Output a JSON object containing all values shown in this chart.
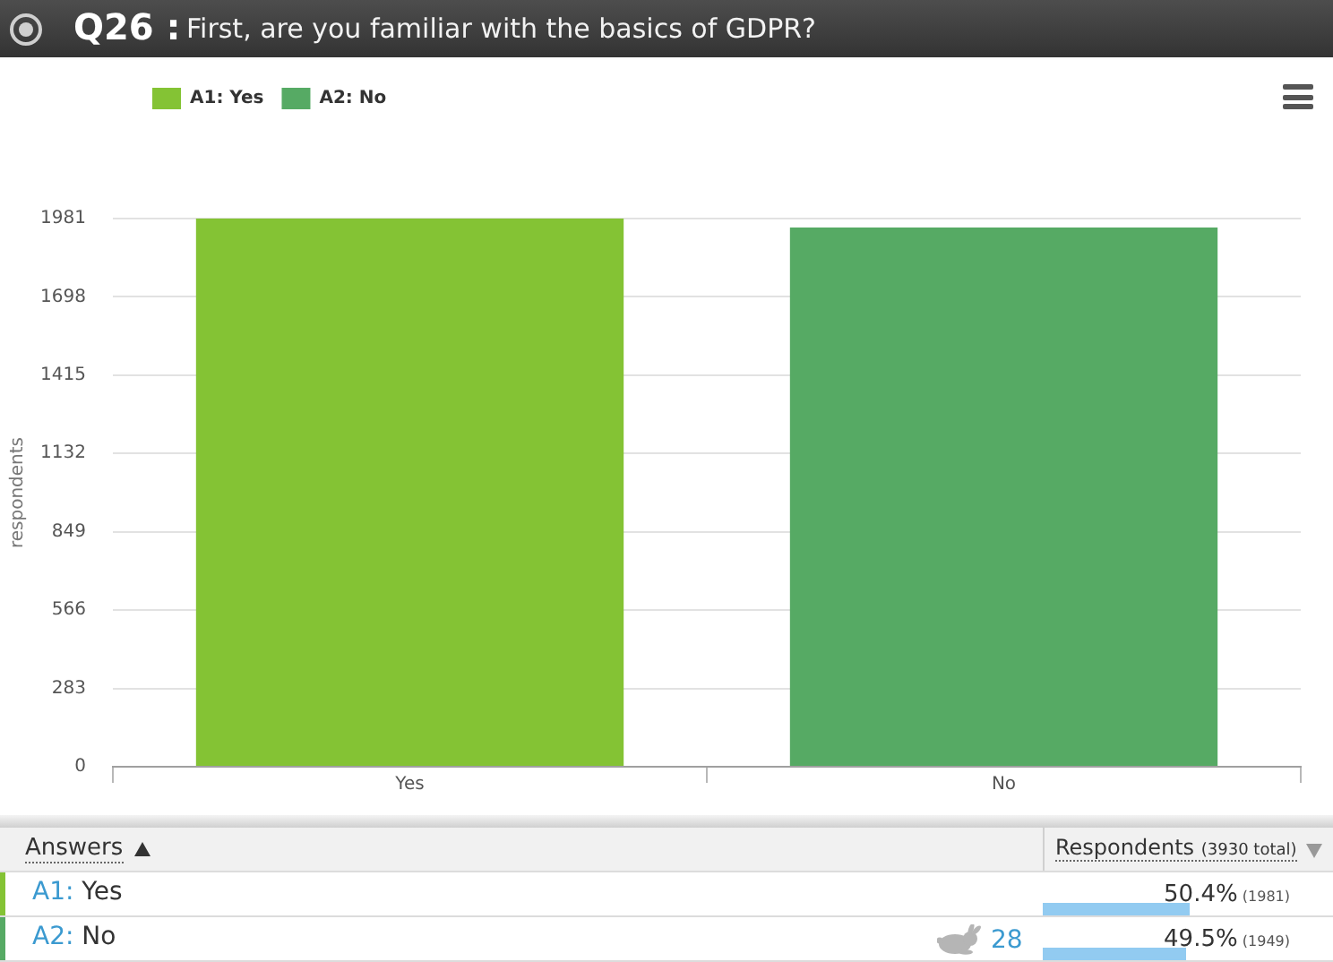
{
  "chart_data": {
    "type": "bar",
    "title": "Q26 :",
    "subtitle": "First, are you familiar with the basics of GDPR?",
    "ylabel": "respondents",
    "categories": [
      "Yes",
      "No"
    ],
    "series": [
      {
        "name": "A1: Yes",
        "color": "#84c334",
        "values": [
          1981,
          null
        ]
      },
      {
        "name": "A2: No",
        "color": "#56aa64",
        "values": [
          null,
          1949
        ]
      }
    ],
    "ylim": [
      0,
      1981
    ],
    "yticks": [
      0,
      283,
      566,
      849,
      1132,
      1415,
      1698,
      1981
    ],
    "grid": "y",
    "legend": "top left",
    "annotations": [
      "Answers",
      "Respondents",
      "(3930 total)",
      "50.4%",
      "(1981)",
      "28",
      "49.5%",
      "(1949)"
    ]
  }
}
